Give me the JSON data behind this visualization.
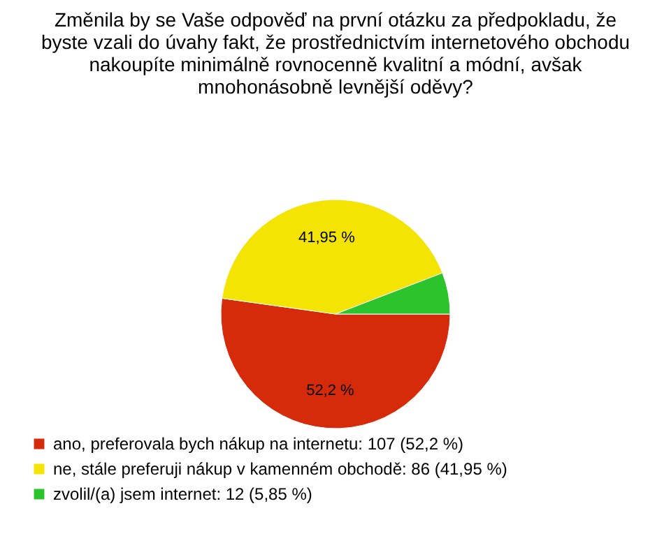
{
  "chart_data": {
    "type": "pie",
    "title": "Změnila by se Vaše odpověď na první otázku za předpokladu, že\nbyste vzali do úvahy fakt, že prostřednictvím internetového obchodu\nnakoupíte minimálně rovnocenně kvalitní a módní, avšak\nmnohonásobně levnější oděvy?",
    "categories": [
      "ano, preferovala bych nákup na internetu: 107 (52,2 %)",
      "ne, stále preferuji nákup v kamenném obchodě: 86 (41,95 %)",
      "zvolil/(a) jsem internet: 12 (5,85 %)"
    ],
    "values": [
      52.2,
      41.95,
      5.85
    ],
    "colors": [
      "#d52b0b",
      "#f4e404",
      "#2cc42c"
    ],
    "value_labels": [
      "52,2 %",
      "41,95 %",
      null
    ],
    "legend": "bottom left"
  }
}
